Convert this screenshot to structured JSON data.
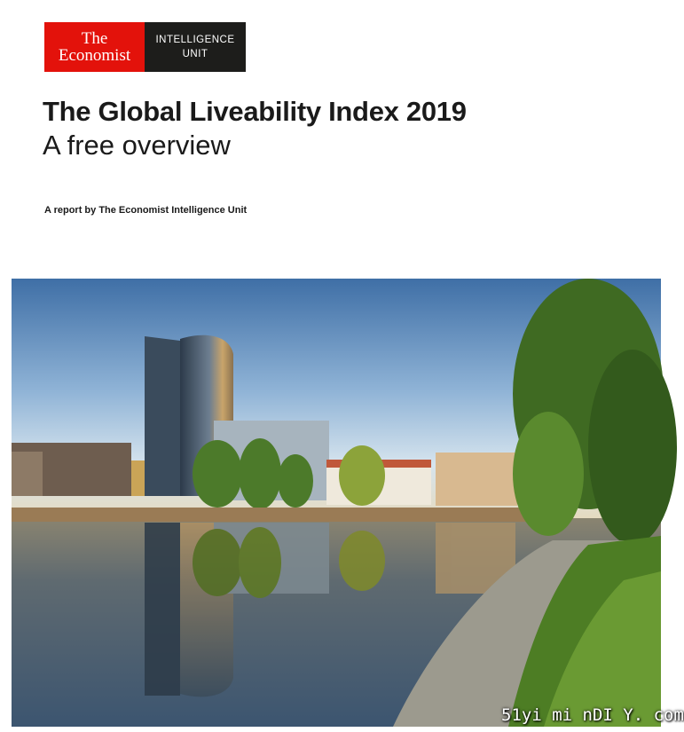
{
  "logo": {
    "line1": "The",
    "line2": "Economist",
    "unit_line1": "INTELLIGENCE",
    "unit_line2": "UNIT",
    "red": "#e3120b",
    "dark": "#1d1d1b"
  },
  "cover": {
    "title": "The Global Liveability Index 2019",
    "subtitle": "A free overview",
    "byline": "A report by The Economist Intelligence Unit"
  },
  "watermark": "51yi mi nDI Y. com"
}
